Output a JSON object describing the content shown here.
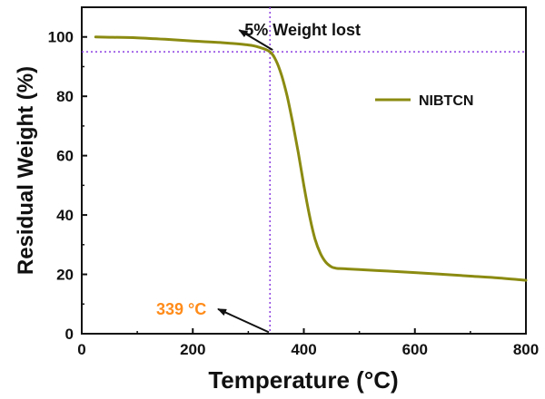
{
  "chart_data": {
    "type": "line",
    "xlabel": "Temperature",
    "xlabel_unit": "(°C)",
    "ylabel": "Residual Weight (%)",
    "xlim": [
      0,
      800
    ],
    "ylim": [
      0,
      110
    ],
    "x_ticks": [
      "0",
      "200",
      "400",
      "600",
      "800"
    ],
    "y_ticks": [
      "0",
      "20",
      "40",
      "60",
      "80",
      "100"
    ],
    "x_tick_values": [
      0,
      200,
      400,
      600,
      800
    ],
    "y_tick_values": [
      0,
      20,
      40,
      60,
      80,
      100
    ],
    "grid": false,
    "legend_position": "top-right",
    "series": [
      {
        "name": "NIBTCN",
        "color": "#8b8b12",
        "x": [
          25,
          50,
          100,
          150,
          200,
          250,
          300,
          320,
          339,
          350,
          360,
          370,
          380,
          390,
          400,
          410,
          420,
          430,
          440,
          450,
          455,
          460,
          470,
          500,
          550,
          600,
          650,
          700,
          750,
          800
        ],
        "y": [
          100,
          99.9,
          99.7,
          99.2,
          98.6,
          98.1,
          97.3,
          96.5,
          95,
          92,
          87,
          80,
          71,
          61,
          50,
          40,
          32,
          27,
          24,
          22.5,
          22.2,
          22.0,
          21.9,
          21.6,
          21.1,
          20.6,
          20.0,
          19.4,
          18.8,
          18.0
        ]
      }
    ],
    "reference_lines": {
      "x": 339,
      "y": 95,
      "color": "#8c3fe0"
    },
    "annotations": [
      {
        "text": "5% Weight lost",
        "x": 470,
        "y": 100.5,
        "arrow_to_x": 339,
        "arrow_to_y": 95,
        "color": "#111111"
      },
      {
        "text": "339 °C",
        "x": 180,
        "y": 8,
        "arrow_to_x": 337,
        "arrow_to_y": 0.5,
        "color": "#ff8c1a"
      }
    ]
  }
}
